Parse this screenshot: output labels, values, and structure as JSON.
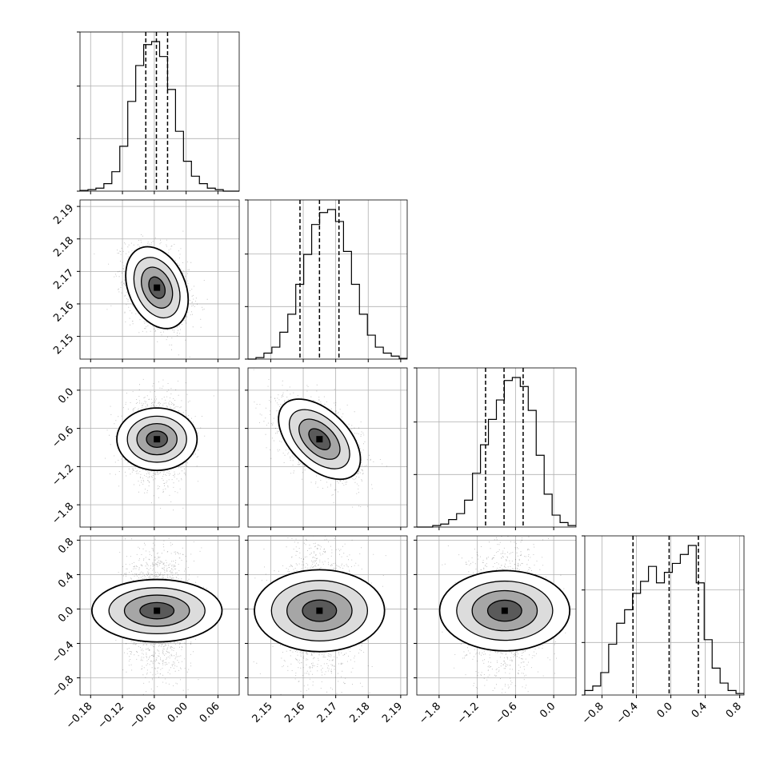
{
  "chart_data": {
    "type": "corner",
    "parameters": [
      {
        "range": [
          -0.2,
          0.1
        ],
        "ticks": [
          -0.18,
          -0.12,
          -0.06,
          0.0,
          0.06
        ],
        "tick_labels": [
          "−0.18",
          "−0.12",
          "−0.06",
          "0.00",
          "0.06"
        ],
        "mean": -0.055,
        "sigma": 0.028,
        "quantiles": [
          -0.076,
          -0.056,
          -0.035
        ]
      },
      {
        "range": [
          2.143,
          2.192
        ],
        "ticks": [
          2.15,
          2.16,
          2.17,
          2.18,
          2.19
        ],
        "tick_labels": [
          "2.15",
          "2.16",
          "2.17",
          "2.18",
          "2.19"
        ],
        "mean": 2.165,
        "sigma": 0.006,
        "quantiles": [
          2.159,
          2.165,
          2.171
        ]
      },
      {
        "range": [
          -2.15,
          0.35
        ],
        "ticks": [
          -1.8,
          -1.2,
          -0.6,
          0.0
        ],
        "tick_labels": [
          "−1.8",
          "−1.2",
          "−0.6",
          "0.0"
        ],
        "mean": -0.77,
        "sigma": 0.3,
        "quantiles": [
          -1.07,
          -0.78,
          -0.48
        ]
      },
      {
        "range": [
          -1.0,
          0.85
        ],
        "ticks": [
          -0.8,
          -0.4,
          0.0,
          0.4,
          0.8
        ],
        "tick_labels": [
          "−0.8",
          "−0.4",
          "0.0",
          "0.4",
          "0.8"
        ],
        "mean": -0.02,
        "sigma": 0.36,
        "quantiles": [
          -0.44,
          -0.02,
          0.32
        ]
      }
    ],
    "histograms": [
      {
        "param": 0,
        "bins": 20,
        "heights": [
          0.005,
          0.01,
          0.02,
          0.05,
          0.13,
          0.3,
          0.6,
          0.84,
          0.98,
          1.0,
          0.9,
          0.68,
          0.4,
          0.2,
          0.1,
          0.05,
          0.02,
          0.01,
          0.0,
          0.0
        ]
      },
      {
        "param": 1,
        "bins": 20,
        "heights": [
          0.0,
          0.01,
          0.04,
          0.08,
          0.18,
          0.3,
          0.5,
          0.7,
          0.9,
          0.98,
          1.0,
          0.92,
          0.72,
          0.5,
          0.3,
          0.16,
          0.08,
          0.04,
          0.02,
          0.005
        ]
      },
      {
        "param": 2,
        "bins": 20,
        "heights": [
          0.0,
          0.0,
          0.01,
          0.02,
          0.05,
          0.09,
          0.18,
          0.36,
          0.55,
          0.72,
          0.85,
          0.98,
          1.0,
          0.94,
          0.78,
          0.48,
          0.22,
          0.08,
          0.03,
          0.01
        ]
      },
      {
        "param": 3,
        "bins": 20,
        "heights": [
          0.03,
          0.06,
          0.15,
          0.34,
          0.48,
          0.57,
          0.68,
          0.76,
          0.86,
          0.75,
          0.82,
          0.88,
          0.94,
          1.0,
          0.75,
          0.37,
          0.18,
          0.08,
          0.03,
          0.01
        ]
      }
    ],
    "pairs": [
      {
        "x": 0,
        "y": 1,
        "rho": -0.3
      },
      {
        "x": 0,
        "y": 2,
        "rho": 0.0
      },
      {
        "x": 1,
        "y": 2,
        "rho": -0.5
      },
      {
        "x": 0,
        "y": 3,
        "rho": 0.0
      },
      {
        "x": 1,
        "y": 3,
        "rho": 0.0
      },
      {
        "x": 2,
        "y": 3,
        "rho": 0.0
      }
    ],
    "contour_levels": [
      0.5,
      1.0,
      1.5,
      2.0
    ],
    "grid": true,
    "color": "#000000",
    "point_color": "#808080"
  }
}
